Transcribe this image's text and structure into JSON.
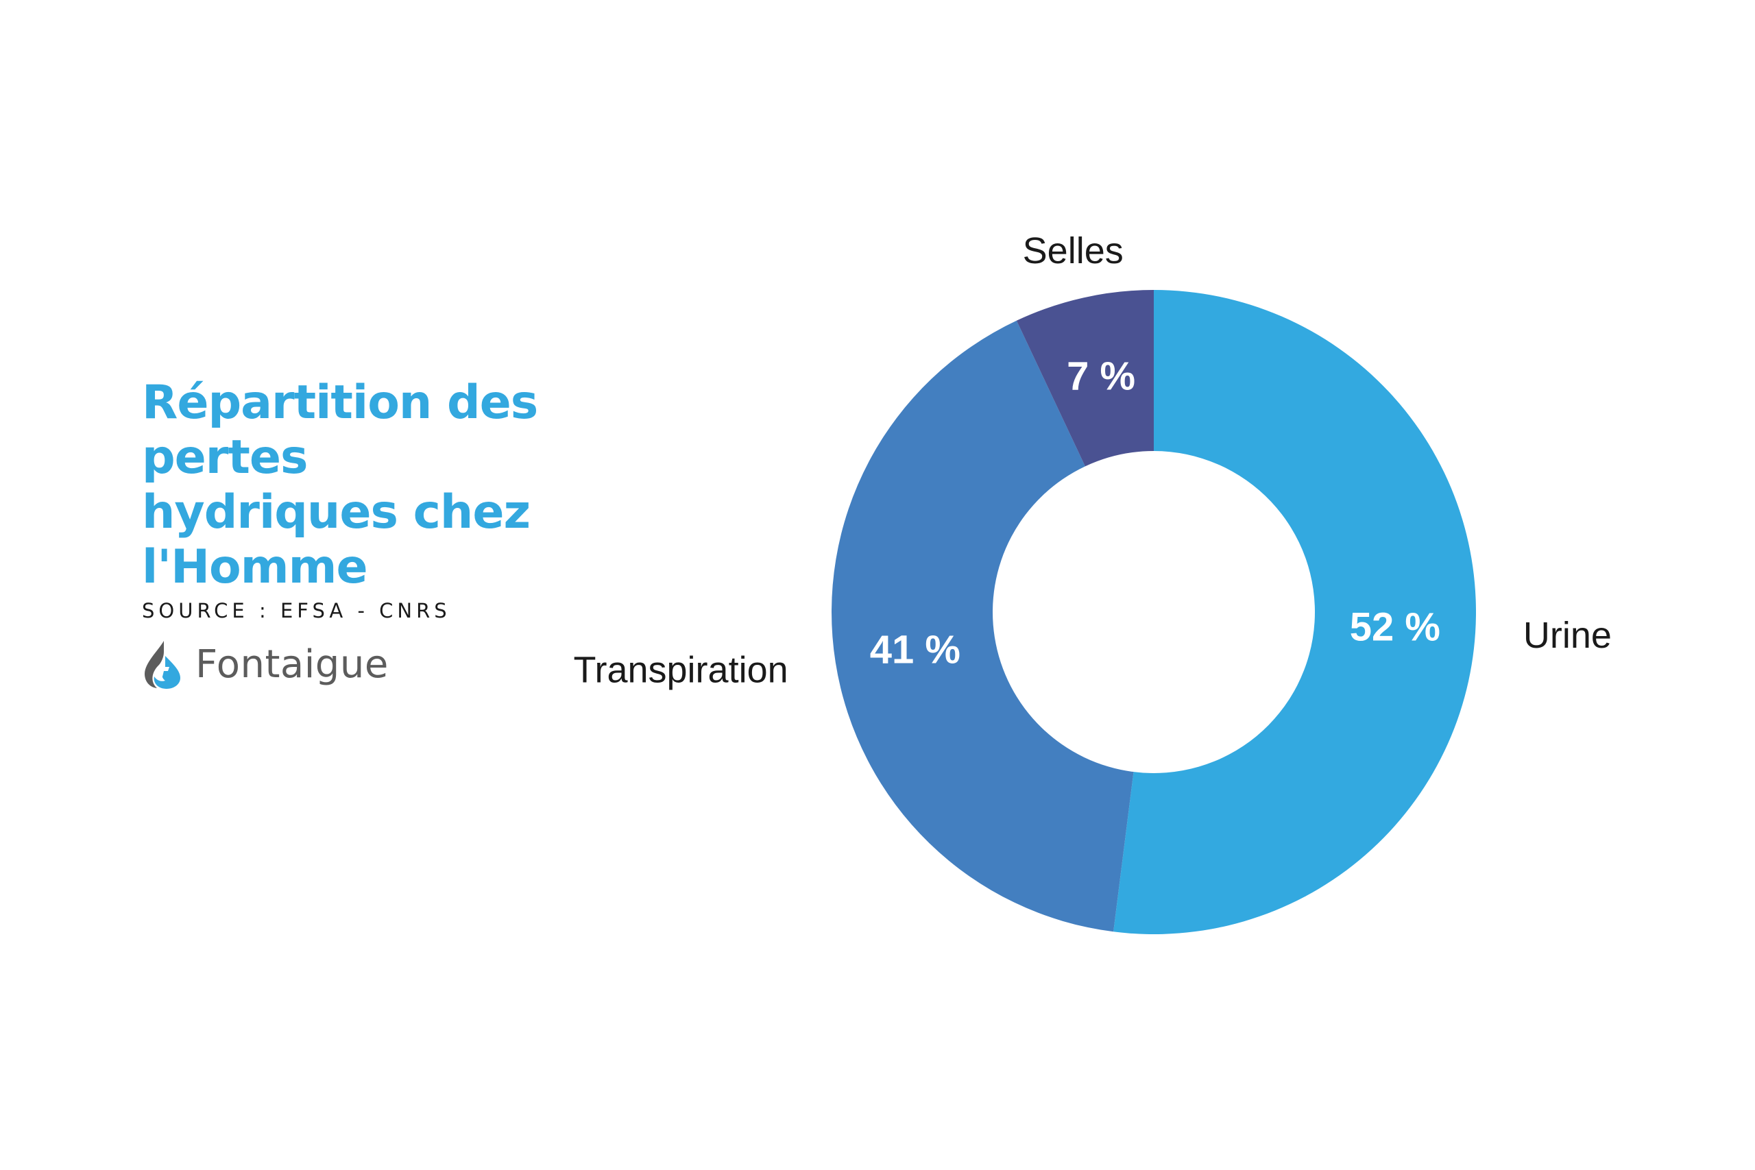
{
  "header": {
    "title_lines": [
      "Répartition des",
      "pertes",
      "hydriques chez",
      "l'Homme"
    ],
    "source": "SOURCE : EFSA - CNRS"
  },
  "brand": {
    "name": "Fontaigue",
    "logo_icon": "water-drop-logo-icon",
    "logo_color_dark": "#5c5c5c",
    "logo_color_light": "#33a8df"
  },
  "colors": {
    "title": "#33a8df",
    "urine": "#33a9e0",
    "transpiration": "#437fc0",
    "selles": "#4a5292"
  },
  "chart_data": {
    "type": "pie",
    "variant": "donut",
    "title": "Répartition des pertes hydriques chez l'Homme",
    "categories": [
      "Urine",
      "Transpiration",
      "Selles"
    ],
    "values": [
      52,
      41,
      7
    ],
    "value_labels": [
      "52 %",
      "41 %",
      "7 %"
    ],
    "colors": [
      "#33a9e0",
      "#437fc0",
      "#4a5292"
    ],
    "start_angle_deg": 0,
    "direction": "clockwise",
    "legend": "none"
  }
}
